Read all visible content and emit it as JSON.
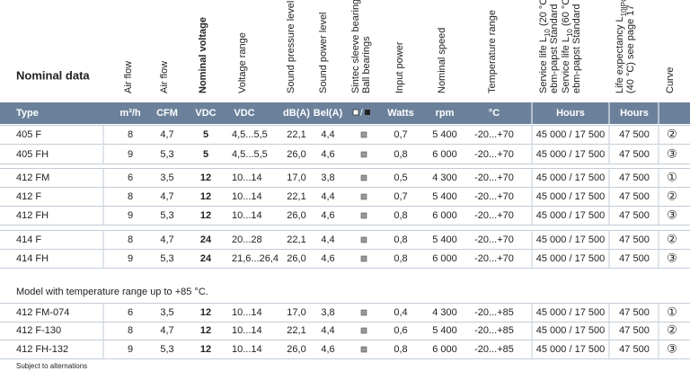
{
  "header": {
    "title": "Nominal data",
    "columns": [
      [
        [
          "Air flow"
        ]
      ],
      [
        [
          "Air flow"
        ]
      ],
      [
        [
          "Nominal voltage"
        ]
      ],
      [
        [
          "Voltage range"
        ]
      ],
      [
        [
          "Sound pressure level"
        ]
      ],
      [
        [
          "Sound power level"
        ]
      ],
      [
        [
          "Sintec sleeve bearings"
        ],
        [
          "Ball bearings"
        ]
      ],
      [
        [
          "Input power"
        ]
      ],
      [
        [
          "Nominal speed"
        ]
      ],
      [
        [
          "Temperature range"
        ]
      ],
      [
        [
          "Service life L",
          {
            "sub": "10"
          },
          " (20 °C)"
        ],
        [
          "ebm-papst Standard"
        ],
        [
          "Service life L",
          {
            "sub": "10"
          },
          " (60 °C)"
        ],
        [
          "ebm-papst Standard"
        ]
      ],
      [
        [
          "Life expectancy L",
          {
            "sub": "10IPC"
          }
        ],
        [
          "(40 °C)  see page 17"
        ]
      ],
      [
        [
          "Curve"
        ]
      ]
    ],
    "units": [
      "Type",
      "m³/h",
      "CFM",
      "VDC",
      "VDC",
      "dB(A)",
      "Bel(A)",
      "Watts",
      "rpm",
      "°C",
      "Hours",
      "Hours"
    ]
  },
  "groups": [
    [
      [
        "405 F",
        "8",
        "4,7",
        "5",
        "4,5...5,5",
        "22,1",
        "4,4",
        "0,7",
        "5 400",
        "-20...+70",
        "45 000 / 17 500",
        "47 500",
        "②"
      ],
      [
        "405 FH",
        "9",
        "5,3",
        "5",
        "4,5...5,5",
        "26,0",
        "4,6",
        "0,8",
        "6 000",
        "-20...+70",
        "45 000 / 17 500",
        "47 500",
        "③"
      ]
    ],
    [
      [
        "412 FM",
        "6",
        "3,5",
        "12",
        "10...14",
        "17,0",
        "3,8",
        "0,5",
        "4 300",
        "-20...+70",
        "45 000 / 17 500",
        "47 500",
        "①"
      ],
      [
        "412 F",
        "8",
        "4,7",
        "12",
        "10...14",
        "22,1",
        "4,4",
        "0,7",
        "5 400",
        "-20...+70",
        "45 000 / 17 500",
        "47 500",
        "②"
      ],
      [
        "412 FH",
        "9",
        "5,3",
        "12",
        "10...14",
        "26,0",
        "4,6",
        "0,8",
        "6 000",
        "-20...+70",
        "45 000 / 17 500",
        "47 500",
        "③"
      ]
    ],
    [
      [
        "414 F",
        "8",
        "4,7",
        "24",
        "20...28",
        "22,1",
        "4,4",
        "0,8",
        "5 400",
        "-20...+70",
        "45 000 / 17 500",
        "47 500",
        "②"
      ],
      [
        "414 FH",
        "9",
        "5,3",
        "24",
        "21,6...26,4",
        "26,0",
        "4,6",
        "0,8",
        "6 000",
        "-20...+70",
        "45 000 / 17 500",
        "47 500",
        "③"
      ]
    ],
    [
      [
        "412 FM-074",
        "6",
        "3,5",
        "12",
        "10...14",
        "17,0",
        "3,8",
        "0,4",
        "4 300",
        "-20...+85",
        "45 000 / 17 500",
        "47 500",
        "①"
      ],
      [
        "412 F-130",
        "8",
        "4,7",
        "12",
        "10...14",
        "22,1",
        "4,4",
        "0,6",
        "5 400",
        "-20...+85",
        "45 000 / 17 500",
        "47 500",
        "②"
      ],
      [
        "412 FH-132",
        "9",
        "5,3",
        "12",
        "10...14",
        "26,0",
        "4,6",
        "0,8",
        "6 000",
        "-20...+85",
        "45 000 / 17 500",
        "47 500",
        "③"
      ]
    ]
  ],
  "note": "Model with temperature range up to +85 °C.",
  "footnote": "Subject to alternations"
}
